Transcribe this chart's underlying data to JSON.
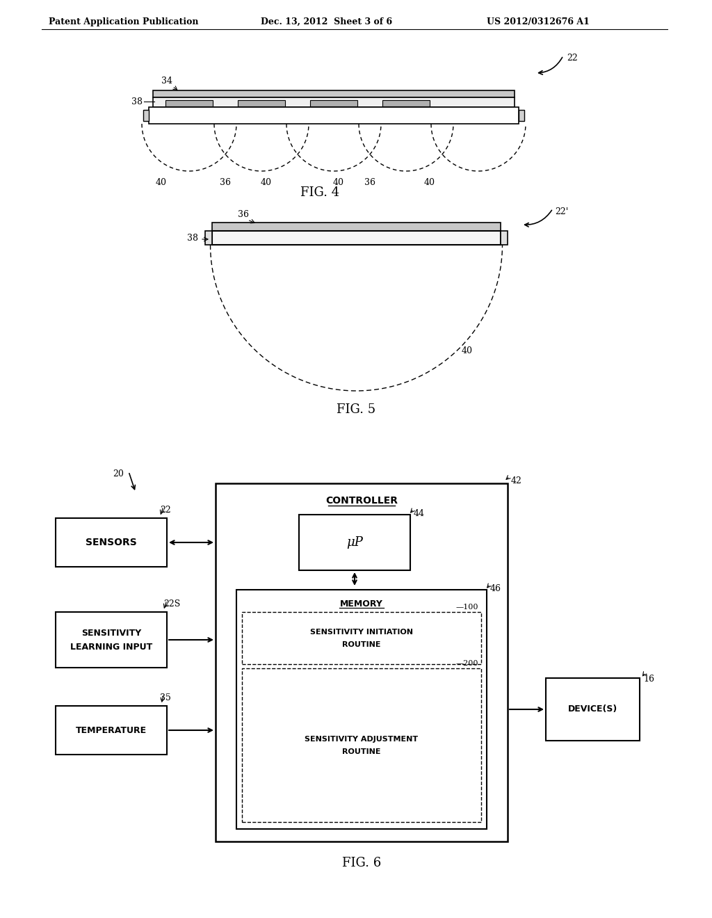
{
  "header_left": "Patent Application Publication",
  "header_mid": "Dec. 13, 2012  Sheet 3 of 6",
  "header_right": "US 2012/0312676 A1",
  "fig4_label": "FIG. 4",
  "fig5_label": "FIG. 5",
  "fig6_label": "FIG. 6",
  "background_color": "#ffffff",
  "line_color": "#000000"
}
